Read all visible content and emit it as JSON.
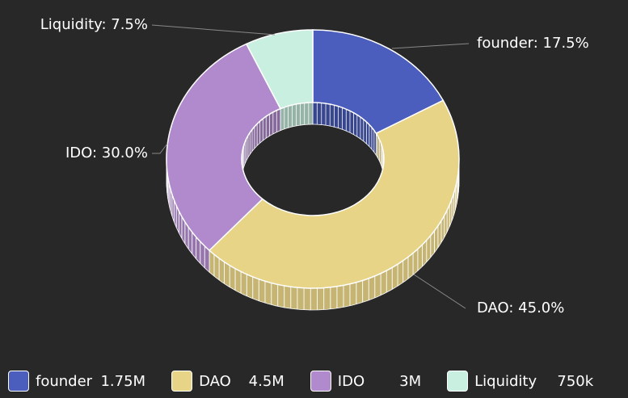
{
  "chart_data": {
    "type": "pie",
    "variant": "3d-donut",
    "categories": [
      "founder",
      "DAO",
      "IDO",
      "Liquidity"
    ],
    "values": [
      1750000,
      4500000,
      3000000,
      750000
    ],
    "percentages": [
      17.5,
      45.0,
      30.0,
      7.5
    ],
    "colors": [
      "#4b5dbd",
      "#e8d486",
      "#b08acc",
      "#c8efe0"
    ],
    "data_labels": [
      "founder: 17.5%",
      "DAO: 45.0%",
      "IDO: 30.0%",
      "Liquidity: 7.5%"
    ],
    "legend": {
      "position": "bottom",
      "items": [
        {
          "name": "founder",
          "value": "1.75M",
          "color": "#4b5dbd"
        },
        {
          "name": "DAO",
          "value": "4.5M",
          "color": "#e8d486"
        },
        {
          "name": "IDO",
          "value": "3M",
          "color": "#b08acc"
        },
        {
          "name": "Liquidity",
          "value": "750k",
          "color": "#c8efe0"
        }
      ]
    }
  },
  "theme": {
    "background": "#282828",
    "text_color": "#ffffff",
    "leader_line_color": "#888888",
    "slice_border": "#ffffff"
  }
}
